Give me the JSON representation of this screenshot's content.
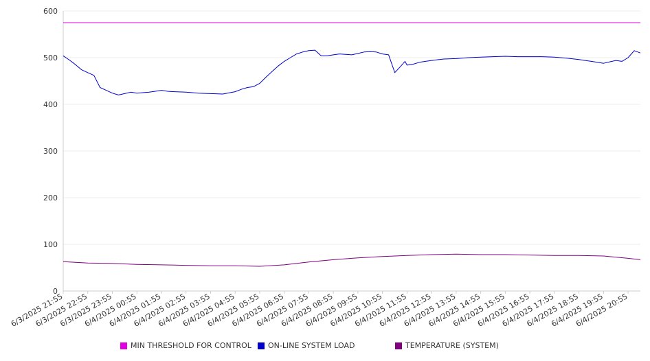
{
  "chart_data": {
    "type": "line",
    "title": "",
    "xlabel": "",
    "ylabel": "",
    "ylim": [
      0,
      600
    ],
    "yticks": [
      0,
      100,
      200,
      300,
      400,
      500,
      600
    ],
    "grid": true,
    "legend_position": "bottom",
    "x_tick_labels": [
      "6/3/2025 21:55",
      "6/3/2025 22:55",
      "6/3/2025 23:55",
      "6/4/2025 00:55",
      "6/4/2025 01:55",
      "6/4/2025 02:55",
      "6/4/2025 03:55",
      "6/4/2025 04:55",
      "6/4/2025 05:55",
      "6/4/2025 06:55",
      "6/4/2025 07:55",
      "6/4/2025 08:55",
      "6/4/2025 09:55",
      "6/4/2025 10:55",
      "6/4/2025 11:55",
      "6/4/2025 12:55",
      "6/4/2025 13:55",
      "6/4/2025 14:55",
      "6/4/2025 15:55",
      "6/4/2025 16:55",
      "6/4/2025 17:55",
      "6/4/2025 18:55",
      "6/4/2025 19:55",
      "6/4/2025 20:55"
    ],
    "series": [
      {
        "name": "MIN THRESHOLD FOR CONTROL",
        "color": "#e000e0",
        "x": [
          "6/3/2025 21:55",
          "6/4/2025 21:25"
        ],
        "values": [
          575,
          575
        ]
      },
      {
        "name": "ON-LINE SYSTEM LOAD",
        "color": "#0000cc",
        "x": [
          "6/3/2025 21:55",
          "6/3/2025 22:10",
          "6/3/2025 22:25",
          "6/3/2025 22:40",
          "6/3/2025 22:55",
          "6/3/2025 23:10",
          "6/3/2025 23:25",
          "6/3/2025 23:40",
          "6/3/2025 23:55",
          "6/4/2025 00:10",
          "6/4/2025 00:25",
          "6/4/2025 00:40",
          "6/4/2025 00:55",
          "6/4/2025 01:10",
          "6/4/2025 01:25",
          "6/4/2025 01:40",
          "6/4/2025 01:55",
          "6/4/2025 02:10",
          "6/4/2025 02:25",
          "6/4/2025 02:55",
          "6/4/2025 03:25",
          "6/4/2025 03:55",
          "6/4/2025 04:25",
          "6/4/2025 04:55",
          "6/4/2025 05:10",
          "6/4/2025 05:25",
          "6/4/2025 05:40",
          "6/4/2025 05:55",
          "6/4/2025 06:10",
          "6/4/2025 06:25",
          "6/4/2025 06:40",
          "6/4/2025 06:55",
          "6/4/2025 07:10",
          "6/4/2025 07:25",
          "6/4/2025 07:40",
          "6/4/2025 07:55",
          "6/4/2025 08:10",
          "6/4/2025 08:25",
          "6/4/2025 08:40",
          "6/4/2025 08:55",
          "6/4/2025 09:10",
          "6/4/2025 09:25",
          "6/4/2025 09:40",
          "6/4/2025 09:55",
          "6/4/2025 10:10",
          "6/4/2025 10:25",
          "6/4/2025 10:40",
          "6/4/2025 10:55",
          "6/4/2025 11:10",
          "6/4/2025 11:25",
          "6/4/2025 11:40",
          "6/4/2025 11:50",
          "6/4/2025 11:55",
          "6/4/2025 12:10",
          "6/4/2025 12:25",
          "6/4/2025 12:40",
          "6/4/2025 12:55",
          "6/4/2025 13:25",
          "6/4/2025 13:55",
          "6/4/2025 14:25",
          "6/4/2025 14:55",
          "6/4/2025 15:25",
          "6/4/2025 15:55",
          "6/4/2025 16:25",
          "6/4/2025 16:55",
          "6/4/2025 17:25",
          "6/4/2025 17:55",
          "6/4/2025 18:25",
          "6/4/2025 18:55",
          "6/4/2025 19:10",
          "6/4/2025 19:25",
          "6/4/2025 19:40",
          "6/4/2025 19:55",
          "6/4/2025 20:10",
          "6/4/2025 20:25",
          "6/4/2025 20:40",
          "6/4/2025 20:55",
          "6/4/2025 21:10",
          "6/4/2025 21:25"
        ],
        "values": [
          504,
          495,
          485,
          474,
          468,
          462,
          436,
          430,
          424,
          420,
          423,
          426,
          424,
          425,
          426,
          428,
          430,
          428,
          427,
          426,
          424,
          423,
          422,
          427,
          432,
          436,
          438,
          445,
          458,
          470,
          482,
          492,
          500,
          508,
          512,
          515,
          516,
          504,
          504,
          506,
          508,
          507,
          506,
          509,
          512,
          513,
          512,
          508,
          506,
          468,
          482,
          492,
          484,
          486,
          490,
          492,
          494,
          497,
          498,
          500,
          501,
          502,
          503,
          502,
          502,
          502,
          501,
          499,
          496,
          494,
          492,
          490,
          488,
          491,
          494,
          492,
          500,
          515,
          510
        ]
      },
      {
        "name": "TEMPERATURE (SYSTEM)",
        "color": "#800080",
        "x": [
          "6/3/2025 21:55",
          "6/3/2025 22:55",
          "6/3/2025 23:55",
          "6/4/2025 00:55",
          "6/4/2025 01:55",
          "6/4/2025 02:55",
          "6/4/2025 03:55",
          "6/4/2025 04:55",
          "6/4/2025 05:55",
          "6/4/2025 06:55",
          "6/4/2025 07:55",
          "6/4/2025 08:55",
          "6/4/2025 09:55",
          "6/4/2025 10:55",
          "6/4/2025 11:55",
          "6/4/2025 12:55",
          "6/4/2025 13:55",
          "6/4/2025 14:55",
          "6/4/2025 15:55",
          "6/4/2025 16:55",
          "6/4/2025 17:55",
          "6/4/2025 18:55",
          "6/4/2025 19:55",
          "6/4/2025 20:55",
          "6/4/2025 21:25"
        ],
        "values": [
          63,
          60,
          59,
          57,
          56,
          55,
          54,
          54,
          53,
          56,
          62,
          67,
          71,
          74,
          76,
          78,
          79,
          78,
          78,
          77,
          76,
          76,
          75,
          70,
          67
        ]
      }
    ]
  }
}
